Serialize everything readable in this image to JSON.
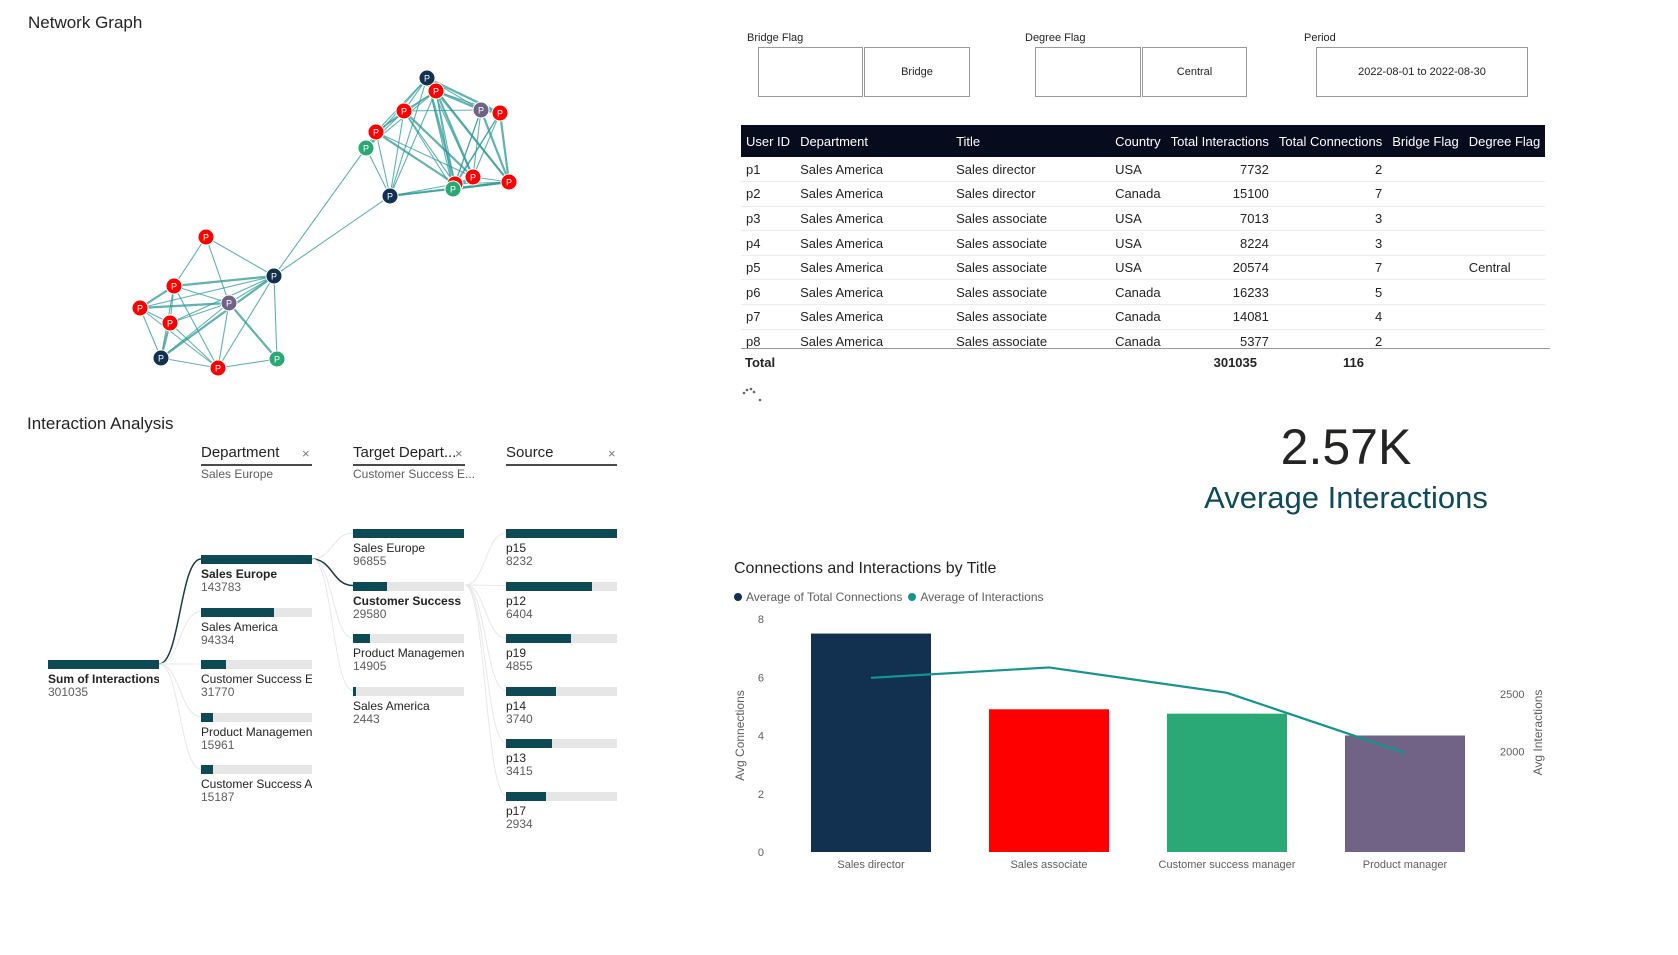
{
  "network": {
    "title": "Network Graph",
    "colors": {
      "red": "#ff0000",
      "navy": "#12304f",
      "green": "#2aa876",
      "purple": "#716386",
      "edge": "#2b9a95"
    },
    "nodes": [
      {
        "label": "P",
        "color": "navy"
      },
      {
        "label": "P",
        "color": "red"
      },
      {
        "label": "P",
        "color": "red"
      },
      {
        "label": "P",
        "color": "purple"
      },
      {
        "label": "P",
        "color": "red"
      },
      {
        "label": "P",
        "color": "red"
      },
      {
        "label": "P",
        "color": "green"
      },
      {
        "label": "P",
        "color": "red"
      },
      {
        "label": "P",
        "color": "navy"
      },
      {
        "label": "P",
        "color": "red"
      },
      {
        "label": "P",
        "color": "green"
      },
      {
        "label": "P",
        "color": "red"
      },
      {
        "label": "P",
        "color": "red"
      },
      {
        "label": "P",
        "color": "navy"
      },
      {
        "label": "P",
        "color": "red"
      },
      {
        "label": "P",
        "color": "purple"
      },
      {
        "label": "P",
        "color": "red"
      },
      {
        "label": "P",
        "color": "red"
      },
      {
        "label": "P",
        "color": "navy"
      },
      {
        "label": "P",
        "color": "red"
      },
      {
        "label": "P",
        "color": "green"
      }
    ]
  },
  "slicers": {
    "bridge": {
      "label": "Bridge Flag",
      "value": "Bridge"
    },
    "degree": {
      "label": "Degree Flag",
      "value": "Central"
    },
    "period": {
      "label": "Period",
      "value": "2022-08-01 to 2022-08-30"
    }
  },
  "table": {
    "columns": [
      "User ID",
      "Department",
      "Title",
      "Country",
      "Total Interactions",
      "Total Connections",
      "Bridge Flag",
      "Degree Flag"
    ],
    "rows": [
      [
        "p1",
        "Sales America",
        "Sales director",
        "USA",
        "7732",
        "2",
        "",
        ""
      ],
      [
        "p2",
        "Sales America",
        "Sales director",
        "Canada",
        "15100",
        "7",
        "",
        ""
      ],
      [
        "p3",
        "Sales America",
        "Sales associate",
        "USA",
        "7013",
        "3",
        "",
        ""
      ],
      [
        "p4",
        "Sales America",
        "Sales associate",
        "USA",
        "8224",
        "3",
        "",
        ""
      ],
      [
        "p5",
        "Sales America",
        "Sales associate",
        "USA",
        "20574",
        "7",
        "",
        "Central"
      ],
      [
        "p6",
        "Sales America",
        "Sales associate",
        "Canada",
        "16233",
        "5",
        "",
        ""
      ],
      [
        "p7",
        "Sales America",
        "Sales associate",
        "Canada",
        "14081",
        "4",
        "",
        ""
      ],
      [
        "p8",
        "Sales America",
        "Sales associate",
        "Canada",
        "5377",
        "2",
        "",
        ""
      ]
    ],
    "total_label": "Total",
    "total_interactions": "301035",
    "total_connections": "116"
  },
  "kpi": {
    "value": "2.57K",
    "label": "Average Interactions"
  },
  "tree": {
    "title": "Interaction Analysis",
    "levels": [
      {
        "header": "Department",
        "filter": "Sales Europe"
      },
      {
        "header": "Target Depart...",
        "filter": "Customer Success E..."
      },
      {
        "header": "Source",
        "filter": ""
      }
    ],
    "root": {
      "label": "Sum of Interactions",
      "value": "301035"
    },
    "col1": [
      {
        "label": "Sales Europe",
        "value": "143783",
        "frac": 1.0
      },
      {
        "label": "Sales America",
        "value": "94334",
        "frac": 0.656
      },
      {
        "label": "Customer Success E...",
        "value": "31770",
        "frac": 0.221
      },
      {
        "label": "Product Management",
        "value": "15961",
        "frac": 0.111
      },
      {
        "label": "Customer Success A...",
        "value": "15187",
        "frac": 0.106
      }
    ],
    "col2": [
      {
        "label": "Sales Europe",
        "value": "96855",
        "frac": 1.0
      },
      {
        "label": "Customer Success ...",
        "value": "29580",
        "frac": 0.305
      },
      {
        "label": "Product Management",
        "value": "14905",
        "frac": 0.154
      },
      {
        "label": "Sales America",
        "value": "2443",
        "frac": 0.025
      }
    ],
    "col3": [
      {
        "label": "p15",
        "value": "8232",
        "frac": 1.0
      },
      {
        "label": "p12",
        "value": "6404",
        "frac": 0.778
      },
      {
        "label": "p19",
        "value": "4855",
        "frac": 0.59
      },
      {
        "label": "p14",
        "value": "3740",
        "frac": 0.454
      },
      {
        "label": "p13",
        "value": "3415",
        "frac": 0.415
      },
      {
        "label": "p17",
        "value": "2934",
        "frac": 0.356
      }
    ]
  },
  "chart_data": {
    "type": "bar",
    "title": "Connections and Interactions by Title",
    "categories": [
      "Sales director",
      "Sales associate",
      "Customer success manager",
      "Product manager"
    ],
    "series": [
      {
        "name": "Average of Total Connections",
        "kind": "bar",
        "axis": "left",
        "values": [
          7.5,
          4.9,
          4.75,
          4.0
        ],
        "colors": [
          "#12304f",
          "#ff0000",
          "#2aa876",
          "#716386"
        ],
        "legend_color": "#12304f"
      },
      {
        "name": "Average of Interactions",
        "kind": "line",
        "axis": "right",
        "values": [
          2640,
          2730,
          2510,
          1990
        ],
        "color": "#13948f"
      }
    ],
    "ylabel": "Avg Connections",
    "ylim": [
      0,
      8
    ],
    "yticks": [
      "0",
      "2",
      "4",
      "6",
      "8"
    ],
    "y2label": "Avg Interactions",
    "y2lim": [
      1130,
      3150
    ],
    "y2ticks": [
      "2000",
      "2500"
    ],
    "legend": "top-left"
  }
}
